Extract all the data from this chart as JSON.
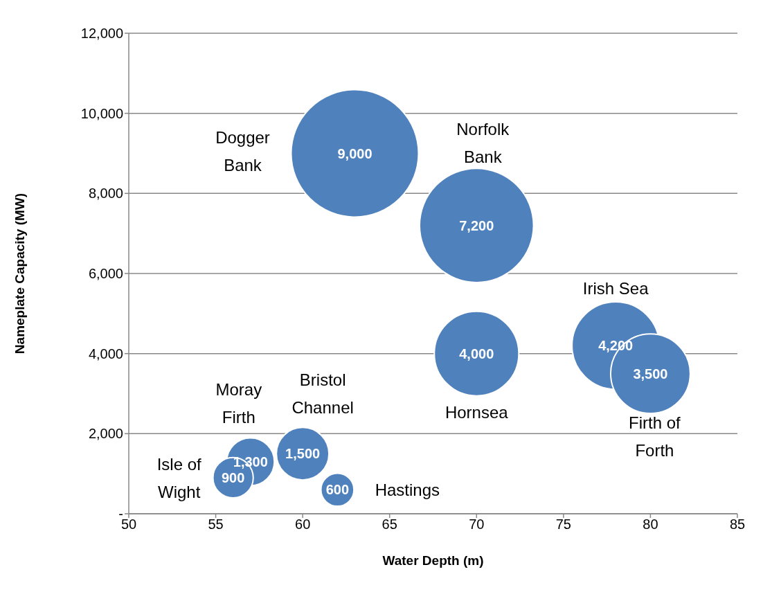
{
  "chart_data": {
    "type": "bubble",
    "xlabel": "Water Depth (m)",
    "ylabel": "Nameplate Capacity (MW)",
    "xlim": [
      50,
      85
    ],
    "xticks": [
      50,
      55,
      60,
      65,
      70,
      75,
      80,
      85
    ],
    "ylim": [
      0,
      12000
    ],
    "yticks": [
      {
        "value": 0,
        "label": "-"
      },
      {
        "value": 2000,
        "label": "2,000"
      },
      {
        "value": 4000,
        "label": "4,000"
      },
      {
        "value": 6000,
        "label": "6,000"
      },
      {
        "value": 8000,
        "label": "8,000"
      },
      {
        "value": 10000,
        "label": "10,000"
      },
      {
        "value": 12000,
        "label": "12,000"
      }
    ],
    "grid": "y",
    "legend": false,
    "series": [
      {
        "color": "#4f81bd",
        "x": [
          63,
          70,
          70,
          78,
          80,
          60,
          57,
          56,
          62
        ],
        "values": [
          9000,
          7200,
          4000,
          4200,
          3500,
          1500,
          1300,
          900,
          600
        ],
        "sizes": [
          1,
          0.8,
          0.44,
          0.47,
          0.39,
          0.17,
          0.14,
          0.1,
          0.067
        ],
        "value_labels": [
          "9,000",
          "7,200",
          "4,000",
          "4,200",
          "3,500",
          "1,500",
          "1,300",
          "900",
          "600"
        ]
      }
    ],
    "annotations": [
      "Dogger Bank",
      "Norfolk Bank",
      "Hornsea",
      "Irish Sea",
      "Firth of Forth",
      "Bristol Channel",
      "Moray Firth",
      "Isle of Wight",
      "Hastings"
    ]
  }
}
